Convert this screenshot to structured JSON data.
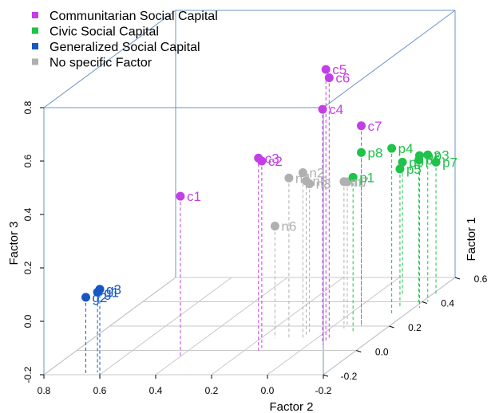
{
  "chart_data": {
    "type": "scatter3d",
    "x_axis": {
      "label": "Factor 2",
      "ticks": [
        "0.8",
        "0.6",
        "0.4",
        "0.2",
        "0.0",
        "-0.2"
      ]
    },
    "y_axis": {
      "label": "Factor 1",
      "ticks": [
        "-0.2",
        "0.0",
        "0.2",
        "0.4",
        "0.6"
      ]
    },
    "z_axis": {
      "label": "Factor 3",
      "ticks": [
        "-0.2",
        "0.0",
        "0.2",
        "0.4",
        "0.6",
        "0.8"
      ]
    },
    "legend": [
      {
        "name": "Communitarian Social Capital",
        "color": "#c43ee8"
      },
      {
        "name": "Civic Social Capital",
        "color": "#1fc24a"
      },
      {
        "name": "Generalized Social Capital",
        "color": "#1657c4"
      },
      {
        "name": "No specific Factor",
        "color": "#b0b0b0"
      }
    ],
    "series": [
      {
        "name": "Communitarian Social Capital",
        "color": "#c43ee8",
        "points": [
          {
            "label": "c1",
            "x": 0.4,
            "y": -0.05,
            "z": 0.4
          },
          {
            "label": "c3",
            "x": 0.15,
            "y": 0.0,
            "z": 0.52
          },
          {
            "label": "c2",
            "x": 0.15,
            "y": 0.02,
            "z": 0.5
          },
          {
            "label": "c4",
            "x": -0.05,
            "y": 0.05,
            "z": 0.68
          },
          {
            "label": "c5",
            "x": -0.05,
            "y": 0.07,
            "z": 0.82
          },
          {
            "label": "c6",
            "x": -0.05,
            "y": 0.09,
            "z": 0.78
          },
          {
            "label": "c7",
            "x": -0.1,
            "y": 0.2,
            "z": 0.55
          }
        ]
      },
      {
        "name": "Civic Social Capital",
        "color": "#1fc24a",
        "points": [
          {
            "label": "p8",
            "x": -0.1,
            "y": 0.2,
            "z": 0.45
          },
          {
            "label": "p4",
            "x": -0.15,
            "y": 0.3,
            "z": 0.42
          },
          {
            "label": "p1",
            "x": -0.1,
            "y": 0.15,
            "z": 0.38
          },
          {
            "label": "p2",
            "x": -0.22,
            "y": 0.35,
            "z": 0.37
          },
          {
            "label": "p3",
            "x": -0.22,
            "y": 0.4,
            "z": 0.35
          },
          {
            "label": "p5",
            "x": -0.15,
            "y": 0.35,
            "z": 0.32
          },
          {
            "label": "p6",
            "x": -0.2,
            "y": 0.38,
            "z": 0.34
          },
          {
            "label": "p7",
            "x": -0.22,
            "y": 0.45,
            "z": 0.3
          },
          {
            "label": "p9",
            "x": -0.1,
            "y": 0.45,
            "z": 0.3
          }
        ]
      },
      {
        "name": "Generalized Social Capital",
        "color": "#1657c4",
        "points": [
          {
            "label": "g3",
            "x": 0.6,
            "y": -0.2,
            "z": 0.12
          },
          {
            "label": "g2",
            "x": 0.65,
            "y": -0.2,
            "z": 0.09
          },
          {
            "label": "g1",
            "x": 0.62,
            "y": -0.18,
            "z": 0.1
          }
        ]
      },
      {
        "name": "No specific Factor",
        "color": "#b0b0b0",
        "points": [
          {
            "label": "n2",
            "x": 0.05,
            "y": 0.1,
            "z": 0.42
          },
          {
            "label": "n4",
            "x": 0.1,
            "y": 0.1,
            "z": 0.4
          },
          {
            "label": "n5",
            "x": 0.05,
            "y": 0.12,
            "z": 0.38
          },
          {
            "label": "n3",
            "x": 0.05,
            "y": 0.14,
            "z": 0.36
          },
          {
            "label": "n1",
            "x": -0.05,
            "y": 0.18,
            "z": 0.35
          },
          {
            "label": "n7",
            "x": -0.05,
            "y": 0.2,
            "z": 0.34
          },
          {
            "label": "n6",
            "x": 0.15,
            "y": 0.1,
            "z": 0.22
          }
        ]
      }
    ]
  }
}
